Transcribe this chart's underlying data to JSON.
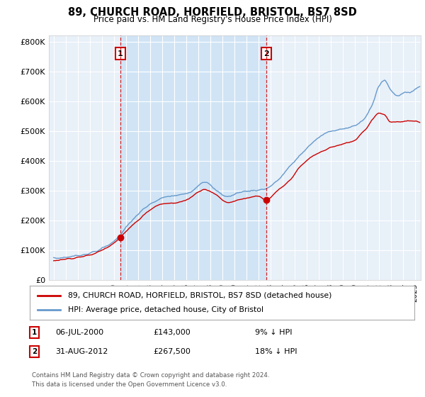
{
  "title": "89, CHURCH ROAD, HORFIELD, BRISTOL, BS7 8SD",
  "subtitle": "Price paid vs. HM Land Registry's House Price Index (HPI)",
  "hpi_label": "HPI: Average price, detached house, City of Bristol",
  "property_label": "89, CHURCH ROAD, HORFIELD, BRISTOL, BS7 8SD (detached house)",
  "annotation1": {
    "num": "1",
    "date": "06-JUL-2000",
    "price": "£143,000",
    "pct": "9% ↓ HPI",
    "year": 2000.52
  },
  "annotation2": {
    "num": "2",
    "date": "31-AUG-2012",
    "price": "£267,500",
    "pct": "18% ↓ HPI",
    "year": 2012.67
  },
  "footnote1": "Contains HM Land Registry data © Crown copyright and database right 2024.",
  "footnote2": "This data is licensed under the Open Government Licence v3.0.",
  "ylim": [
    0,
    820000
  ],
  "yticks": [
    0,
    100000,
    200000,
    300000,
    400000,
    500000,
    600000,
    700000,
    800000
  ],
  "ytick_labels": [
    "£0",
    "£100K",
    "£200K",
    "£300K",
    "£400K",
    "£500K",
    "£600K",
    "£700K",
    "£800K"
  ],
  "property_color": "#cc0000",
  "hpi_color": "#6699cc",
  "vline_color": "#cc0000",
  "background_color": "#e8f0f8",
  "shade_color": "#d0e4f5",
  "annotation_box_color": "#cc0000",
  "grid_color": "#ffffff",
  "sale1_price": 143000,
  "sale2_price": 267500
}
